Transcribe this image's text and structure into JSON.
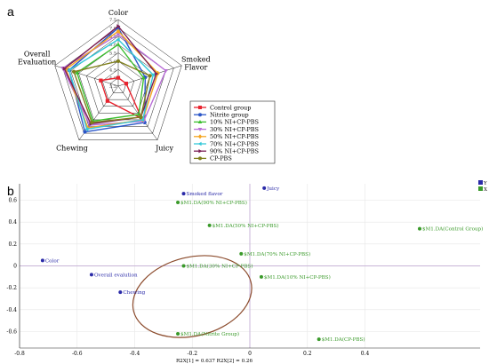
{
  "panel_a_letter": "a",
  "panel_b_letter": "b",
  "chart_data": [
    {
      "type": "radar",
      "axes": [
        "Color",
        "Smoked\nFlavor",
        "Juicy",
        "Chewing",
        "Overall\nEvaluation"
      ],
      "rlim": [
        3.5,
        7.5
      ],
      "rticks": [
        "3.5",
        "4.0",
        "4.5",
        "5.0",
        "5.5",
        "6.0",
        "6.5",
        "7.0",
        "7.5"
      ],
      "legend_position": "right",
      "series": [
        {
          "name": "Control group",
          "color": "#e8242f",
          "marker": "square",
          "values": [
            4.0,
            4.0,
            5.9,
            4.6,
            4.6
          ]
        },
        {
          "name": "Nitrite group",
          "color": "#2b56c8",
          "marker": "circle",
          "values": [
            7.0,
            5.2,
            6.2,
            6.9,
            6.6
          ]
        },
        {
          "name": "10% NI+CP-PBS",
          "color": "#3bbf2e",
          "marker": "triangle-up",
          "values": [
            6.0,
            5.1,
            5.6,
            6.1,
            6.1
          ]
        },
        {
          "name": "30% NI+CP-PBS",
          "color": "#b96ed7",
          "marker": "triangle-down",
          "values": [
            6.6,
            6.5,
            6.1,
            6.4,
            7.0
          ]
        },
        {
          "name": "50% NI+CP-PBS",
          "color": "#f5a623",
          "marker": "diamond",
          "values": [
            6.8,
            6.0,
            6.0,
            6.6,
            6.8
          ]
        },
        {
          "name": "70% NI+CP-PBS",
          "color": "#35c9d9",
          "marker": "triangle-left",
          "values": [
            6.3,
            5.7,
            6.0,
            6.7,
            6.6
          ]
        },
        {
          "name": "90% NI+CP-PBS",
          "color": "#7a1f55",
          "marker": "triangle-right",
          "values": [
            7.1,
            5.9,
            5.8,
            6.3,
            6.9
          ]
        },
        {
          "name": "CP-PBS",
          "color": "#7f7f1b",
          "marker": "circle",
          "values": [
            5.0,
            5.5,
            5.8,
            6.2,
            6.3
          ]
        }
      ]
    },
    {
      "type": "scatter",
      "xlim": [
        -0.8,
        0.8
      ],
      "ylim": [
        -0.75,
        0.75
      ],
      "xticks": [
        -0.8,
        -0.6,
        -0.4,
        -0.2,
        0,
        0.2,
        0.4
      ],
      "yticks": [
        0.6,
        0.4,
        0.2,
        0,
        -0.2,
        -0.4,
        -0.6
      ],
      "xlabel": "R2X[1] = 0.637 R2X[2] = 0.26",
      "grid": true,
      "legend_labels": [
        "X",
        "Y"
      ],
      "x_color": "#3a9a2a",
      "y_color": "#2a2aa8",
      "y_points": [
        {
          "label": "Smoked flavor",
          "x": -0.23,
          "y": 0.66
        },
        {
          "label": "Juicy",
          "x": 0.05,
          "y": 0.71
        },
        {
          "label": "Color",
          "x": -0.72,
          "y": 0.05
        },
        {
          "label": "Overall evalution",
          "x": -0.55,
          "y": -0.08
        },
        {
          "label": "Chewing",
          "x": -0.45,
          "y": -0.24
        }
      ],
      "x_points": [
        {
          "label": "$M1.DA(90% NI+CP-PBS)",
          "x": -0.25,
          "y": 0.58
        },
        {
          "label": "$M1.DA(50% NI+CP-PBS)",
          "x": -0.14,
          "y": 0.37
        },
        {
          "label": "$M1.DA(Control Group)",
          "x": 0.59,
          "y": 0.34
        },
        {
          "label": "$M1.DA(70% NI+CP-PBS)",
          "x": -0.03,
          "y": 0.11
        },
        {
          "label": "$M1.DA(30% NI+CP-PBS)",
          "x": -0.23,
          "y": 0.0
        },
        {
          "label": "$M1.DA(10% NI+CP-PBS)",
          "x": 0.04,
          "y": -0.1
        },
        {
          "label": "$M1.DA(Nitrite Group)",
          "x": -0.25,
          "y": -0.62
        },
        {
          "label": "$M1.DA(CP-PBS)",
          "x": 0.24,
          "y": -0.67
        }
      ],
      "annotation": {
        "type": "ellipse",
        "color": "#8b4a2b",
        "center": [
          -0.2,
          -0.28
        ],
        "rx": 0.21,
        "ry": 0.36
      }
    }
  ]
}
